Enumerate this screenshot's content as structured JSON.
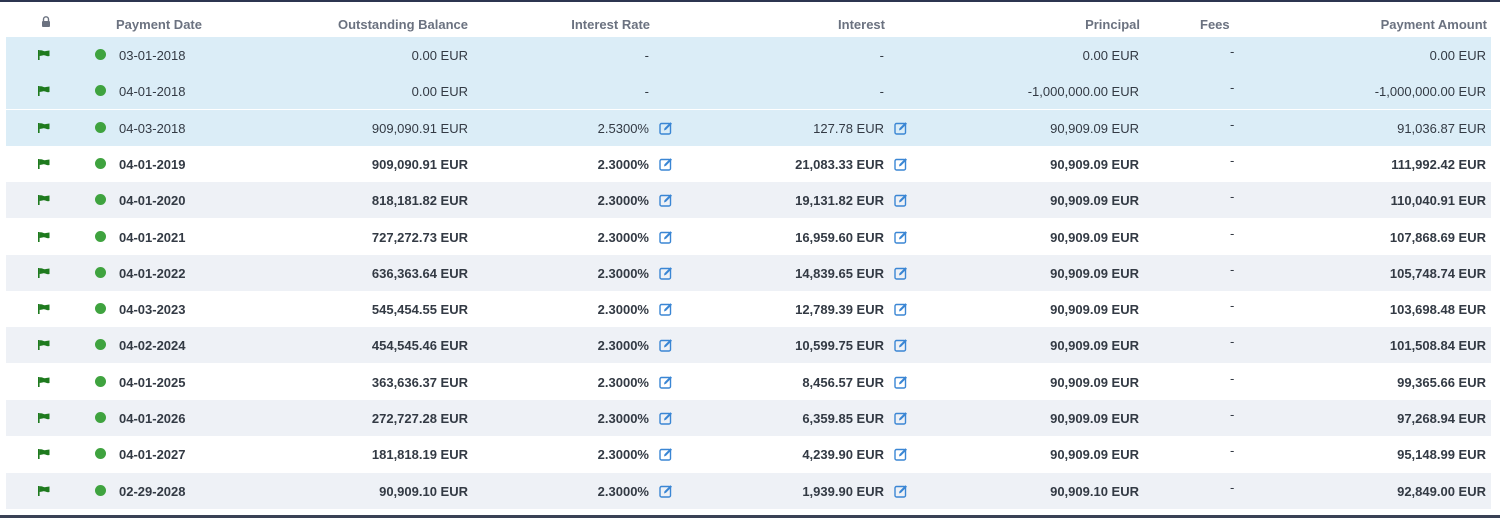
{
  "header": {
    "lock_icon": "lock-icon",
    "payment_date": "Payment Date",
    "outstanding_balance": "Outstanding Balance",
    "interest_rate": "Interest Rate",
    "interest": "Interest",
    "principal": "Principal",
    "fees": "Fees",
    "payment_amount": "Payment Amount"
  },
  "colors": {
    "highlight_row": "#dbedf7",
    "alt_row": "#eef1f6",
    "flag": "#1e7a1e",
    "status_dot": "#3fa33f",
    "edit_icon": "#3a86d4"
  },
  "rows": [
    {
      "date": "03-01-2018",
      "balance": "0.00 EUR",
      "rate": "-",
      "interest": "-",
      "principal": "0.00 EUR",
      "fees": "-",
      "payment": "0.00 EUR",
      "highlight": true,
      "editable": false
    },
    {
      "date": "04-01-2018",
      "balance": "0.00 EUR",
      "rate": "-",
      "interest": "-",
      "principal": "-1,000,000.00 EUR",
      "fees": "-",
      "payment": "-1,000,000.00 EUR",
      "highlight": true,
      "editable": false
    },
    {
      "date": "04-03-2018",
      "balance": "909,090.91 EUR",
      "rate": "2.5300%",
      "interest": "127.78 EUR",
      "principal": "90,909.09 EUR",
      "fees": "-",
      "payment": "91,036.87 EUR",
      "highlight": true,
      "editable": true
    },
    {
      "date": "04-01-2019",
      "balance": "909,090.91 EUR",
      "rate": "2.3000%",
      "interest": "21,083.33 EUR",
      "principal": "90,909.09 EUR",
      "fees": "-",
      "payment": "111,992.42 EUR",
      "highlight": false,
      "editable": true
    },
    {
      "date": "04-01-2020",
      "balance": "818,181.82 EUR",
      "rate": "2.3000%",
      "interest": "19,131.82 EUR",
      "principal": "90,909.09 EUR",
      "fees": "-",
      "payment": "110,040.91 EUR",
      "highlight": false,
      "editable": true
    },
    {
      "date": "04-01-2021",
      "balance": "727,272.73 EUR",
      "rate": "2.3000%",
      "interest": "16,959.60 EUR",
      "principal": "90,909.09 EUR",
      "fees": "-",
      "payment": "107,868.69 EUR",
      "highlight": false,
      "editable": true
    },
    {
      "date": "04-01-2022",
      "balance": "636,363.64 EUR",
      "rate": "2.3000%",
      "interest": "14,839.65 EUR",
      "principal": "90,909.09 EUR",
      "fees": "-",
      "payment": "105,748.74 EUR",
      "highlight": false,
      "editable": true
    },
    {
      "date": "04-03-2023",
      "balance": "545,454.55 EUR",
      "rate": "2.3000%",
      "interest": "12,789.39 EUR",
      "principal": "90,909.09 EUR",
      "fees": "-",
      "payment": "103,698.48 EUR",
      "highlight": false,
      "editable": true
    },
    {
      "date": "04-02-2024",
      "balance": "454,545.46 EUR",
      "rate": "2.3000%",
      "interest": "10,599.75 EUR",
      "principal": "90,909.09 EUR",
      "fees": "-",
      "payment": "101,508.84 EUR",
      "highlight": false,
      "editable": true
    },
    {
      "date": "04-01-2025",
      "balance": "363,636.37 EUR",
      "rate": "2.3000%",
      "interest": "8,456.57 EUR",
      "principal": "90,909.09 EUR",
      "fees": "-",
      "payment": "99,365.66 EUR",
      "highlight": false,
      "editable": true
    },
    {
      "date": "04-01-2026",
      "balance": "272,727.28 EUR",
      "rate": "2.3000%",
      "interest": "6,359.85 EUR",
      "principal": "90,909.09 EUR",
      "fees": "-",
      "payment": "97,268.94 EUR",
      "highlight": false,
      "editable": true
    },
    {
      "date": "04-01-2027",
      "balance": "181,818.19 EUR",
      "rate": "2.3000%",
      "interest": "4,239.90 EUR",
      "principal": "90,909.09 EUR",
      "fees": "-",
      "payment": "95,148.99 EUR",
      "highlight": false,
      "editable": true
    },
    {
      "date": "02-29-2028",
      "balance": "90,909.10 EUR",
      "rate": "2.3000%",
      "interest": "1,939.90 EUR",
      "principal": "90,909.10 EUR",
      "fees": "-",
      "payment": "92,849.00 EUR",
      "highlight": false,
      "editable": true
    }
  ]
}
